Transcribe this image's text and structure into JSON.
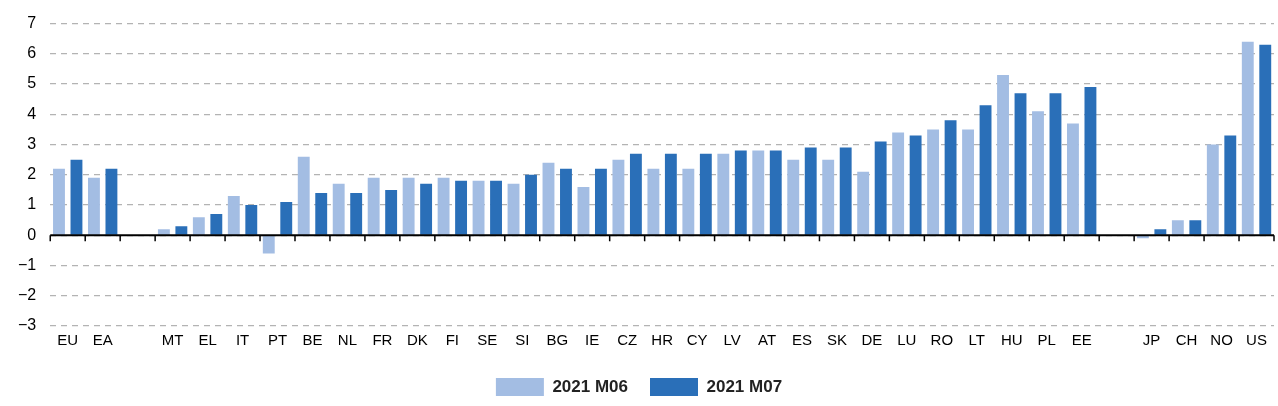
{
  "chart_data": {
    "type": "bar",
    "categories": [
      "EU",
      "EA",
      null,
      "MT",
      "EL",
      "IT",
      "PT",
      "BE",
      "NL",
      "FR",
      "DK",
      "FI",
      "SE",
      "SI",
      "BG",
      "IE",
      "CZ",
      "HR",
      "CY",
      "LV",
      "AT",
      "ES",
      "SK",
      "DE",
      "LU",
      "RO",
      "LT",
      "HU",
      "PL",
      "EE",
      null,
      "JP",
      "CH",
      "NO",
      "US"
    ],
    "series": [
      {
        "name": "2021 M06",
        "color": "#a3bde3",
        "values": [
          2.2,
          1.9,
          null,
          0.2,
          0.6,
          1.3,
          -0.6,
          2.6,
          1.7,
          1.9,
          1.9,
          1.9,
          1.8,
          1.7,
          2.4,
          1.6,
          2.5,
          2.2,
          2.2,
          2.7,
          2.8,
          2.5,
          2.5,
          2.1,
          3.4,
          3.5,
          3.5,
          5.3,
          4.1,
          3.7,
          null,
          -0.1,
          0.5,
          3.0,
          6.4
        ]
      },
      {
        "name": "2021 M07",
        "color": "#2a6fb8",
        "values": [
          2.5,
          2.2,
          null,
          0.3,
          0.7,
          1.0,
          1.1,
          1.4,
          1.4,
          1.5,
          1.7,
          1.8,
          1.8,
          2.0,
          2.2,
          2.2,
          2.7,
          2.7,
          2.7,
          2.8,
          2.8,
          2.9,
          2.9,
          3.1,
          3.3,
          3.8,
          4.3,
          4.7,
          4.7,
          4.9,
          null,
          0.2,
          0.5,
          3.3,
          6.3
        ]
      }
    ],
    "ylim": [
      -3,
      7
    ],
    "yticks": [
      -3,
      -2,
      -1,
      0,
      1,
      2,
      3,
      4,
      5,
      6,
      7
    ],
    "grid": "y",
    "legend": "bottom"
  }
}
